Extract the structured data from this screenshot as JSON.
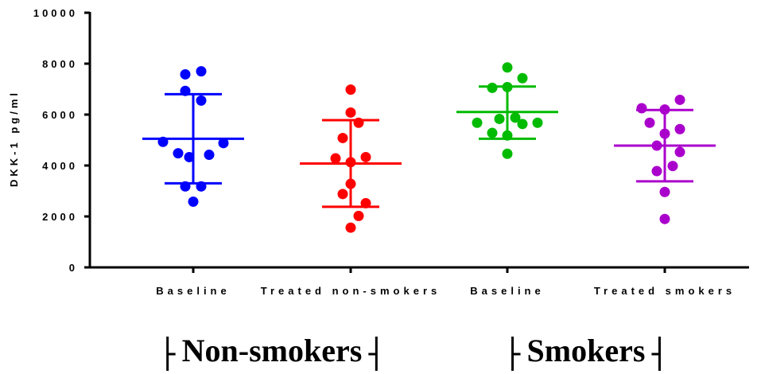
{
  "chart_data": {
    "type": "scatter",
    "ylabel": "DKK-1 pg/ml",
    "ylim": [
      0,
      10000
    ],
    "y_ticks": [
      "0",
      "2000",
      "4000",
      "6000",
      "8000",
      "10000"
    ],
    "grid": false,
    "categories": [
      "Baseline",
      "Treated non-smokers",
      "Baseline",
      "Treated smokers"
    ],
    "groups": [
      {
        "label": "Non-smokers",
        "categories": [
          0,
          1
        ]
      },
      {
        "label": "Smokers",
        "categories": [
          2,
          3
        ]
      }
    ],
    "series": [
      {
        "color": "#0000ff",
        "mean": 5050,
        "upper": 6800,
        "lower": 3300,
        "points": [
          {
            "dx": 0,
            "y": 2580
          },
          {
            "dx": -10,
            "y": 3180
          },
          {
            "dx": 10,
            "y": 3180
          },
          {
            "dx": -5,
            "y": 4330
          },
          {
            "dx": 20,
            "y": 4420
          },
          {
            "dx": -19,
            "y": 4480
          },
          {
            "dx": -38,
            "y": 4930
          },
          {
            "dx": 38,
            "y": 4880
          },
          {
            "dx": 10,
            "y": 6550
          },
          {
            "dx": -10,
            "y": 6930
          },
          {
            "dx": -10,
            "y": 7580
          },
          {
            "dx": 10,
            "y": 7700
          }
        ]
      },
      {
        "color": "#ff0000",
        "mean": 4080,
        "upper": 5780,
        "lower": 2380,
        "points": [
          {
            "dx": 0,
            "y": 1560
          },
          {
            "dx": 10,
            "y": 2020
          },
          {
            "dx": 19,
            "y": 2520
          },
          {
            "dx": -10,
            "y": 2880
          },
          {
            "dx": 0,
            "y": 3280
          },
          {
            "dx": 0,
            "y": 4130
          },
          {
            "dx": -19,
            "y": 4280
          },
          {
            "dx": 19,
            "y": 4330
          },
          {
            "dx": -10,
            "y": 5080
          },
          {
            "dx": 10,
            "y": 5680
          },
          {
            "dx": 0,
            "y": 6080
          },
          {
            "dx": 0,
            "y": 6980
          }
        ]
      },
      {
        "color": "#00bb00",
        "mean": 6100,
        "upper": 7100,
        "lower": 5050,
        "points": [
          {
            "dx": 0,
            "y": 4460
          },
          {
            "dx": 0,
            "y": 5180
          },
          {
            "dx": -19,
            "y": 5280
          },
          {
            "dx": -38,
            "y": 5680
          },
          {
            "dx": -10,
            "y": 5830
          },
          {
            "dx": 10,
            "y": 5880
          },
          {
            "dx": 19,
            "y": 5630
          },
          {
            "dx": 38,
            "y": 5680
          },
          {
            "dx": -19,
            "y": 7050
          },
          {
            "dx": 0,
            "y": 7080
          },
          {
            "dx": 19,
            "y": 7430
          },
          {
            "dx": 0,
            "y": 7850
          }
        ]
      },
      {
        "color": "#aa00cc",
        "mean": 4780,
        "upper": 6180,
        "lower": 3380,
        "points": [
          {
            "dx": 0,
            "y": 1900
          },
          {
            "dx": 0,
            "y": 2960
          },
          {
            "dx": -10,
            "y": 3780
          },
          {
            "dx": 10,
            "y": 3980
          },
          {
            "dx": 19,
            "y": 4530
          },
          {
            "dx": -10,
            "y": 4780
          },
          {
            "dx": 0,
            "y": 5250
          },
          {
            "dx": 19,
            "y": 5430
          },
          {
            "dx": -19,
            "y": 5680
          },
          {
            "dx": -29,
            "y": 6250
          },
          {
            "dx": 0,
            "y": 6200
          },
          {
            "dx": 19,
            "y": 6580
          }
        ]
      }
    ]
  }
}
